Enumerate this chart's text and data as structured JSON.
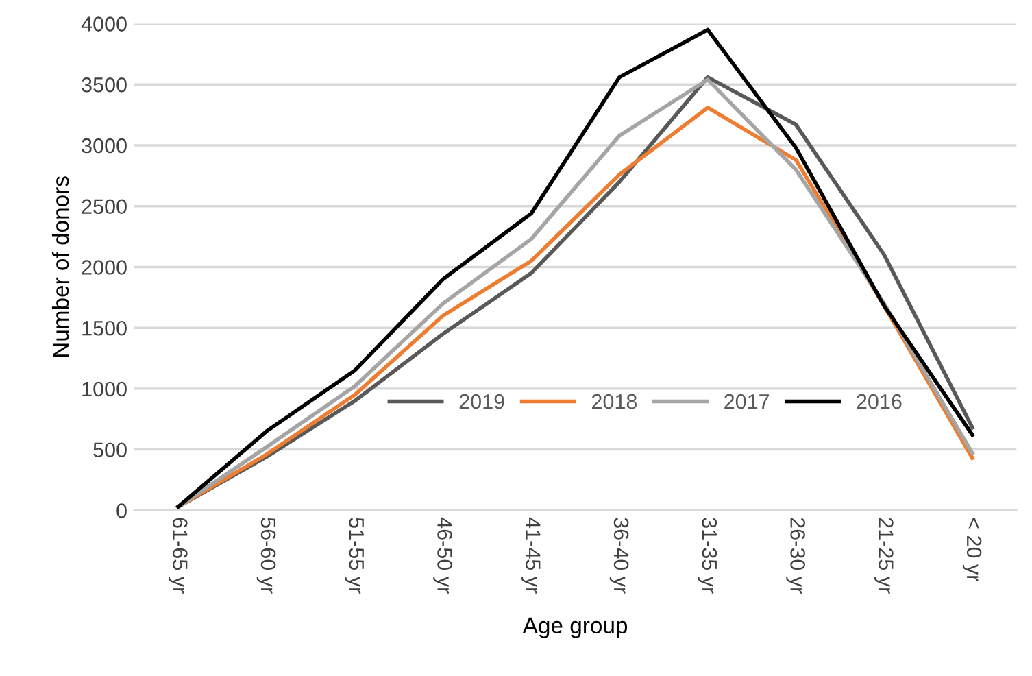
{
  "chart_data": {
    "type": "line",
    "xlabel": "Age group",
    "ylabel": "Number of donors",
    "categories": [
      "61-65 yr",
      "56-60 yr",
      "51-55 yr",
      "46-50 yr",
      "41-45 yr",
      "36-40 yr",
      "31-35 yr",
      "26-30 yr",
      "21-25 yr",
      "< 20 yr"
    ],
    "series": [
      {
        "name": "2019",
        "color": "#595959",
        "values": [
          30,
          440,
          900,
          1450,
          1950,
          2700,
          3560,
          3170,
          2100,
          680
        ]
      },
      {
        "name": "2018",
        "color": "#ed7d31",
        "values": [
          30,
          460,
          950,
          1600,
          2050,
          2760,
          3310,
          2880,
          1680,
          430
        ]
      },
      {
        "name": "2017",
        "color": "#a5a5a5",
        "values": [
          30,
          520,
          1020,
          1700,
          2230,
          3080,
          3540,
          2800,
          1700,
          470
        ]
      },
      {
        "name": "2016",
        "color": "#000000",
        "values": [
          30,
          650,
          1150,
          1900,
          2440,
          3560,
          3950,
          2980,
          1680,
          620
        ]
      }
    ],
    "ylim": [
      0,
      4000
    ],
    "yticks": [
      0,
      500,
      1000,
      1500,
      2000,
      2500,
      3000,
      3500,
      4000
    ],
    "grid": "y",
    "legend": "bottom right",
    "marker": "none",
    "line_style": "solid"
  }
}
